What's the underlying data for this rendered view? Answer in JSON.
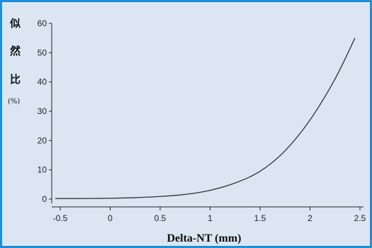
{
  "chart_data": {
    "type": "line",
    "title": "",
    "xlabel": "Delta-NT (mm)",
    "ylabel_chars": [
      "似",
      "然",
      "比"
    ],
    "ylabel_unit": "(%)",
    "xlim": [
      -0.55,
      2.5
    ],
    "ylim": [
      0,
      60
    ],
    "xticks": [
      -0.5,
      0,
      0.5,
      1,
      1.5,
      2,
      2.5
    ],
    "xtick_labels": [
      "-0.5",
      "0",
      "0.5",
      "1",
      "1.5",
      "2",
      "2.5"
    ],
    "yticks": [
      0,
      10,
      20,
      30,
      40,
      50,
      60
    ],
    "ytick_labels": [
      "0",
      "10",
      "20",
      "30",
      "40",
      "50",
      "60"
    ],
    "grid": false,
    "series": [
      {
        "color": "#333333",
        "x": [
          -0.55,
          -0.25,
          0,
          0.25,
          0.5,
          0.75,
          1.0,
          1.25,
          1.5,
          1.75,
          2.0,
          2.25,
          2.45
        ],
        "y": [
          0.2,
          0.2,
          0.3,
          0.5,
          0.9,
          1.6,
          3.0,
          5.5,
          9.5,
          16.5,
          27.0,
          41.0,
          55.0
        ]
      }
    ],
    "colors": {
      "background": "#dce6f2",
      "border": "#1c8fd6",
      "axis": "#222222"
    }
  }
}
